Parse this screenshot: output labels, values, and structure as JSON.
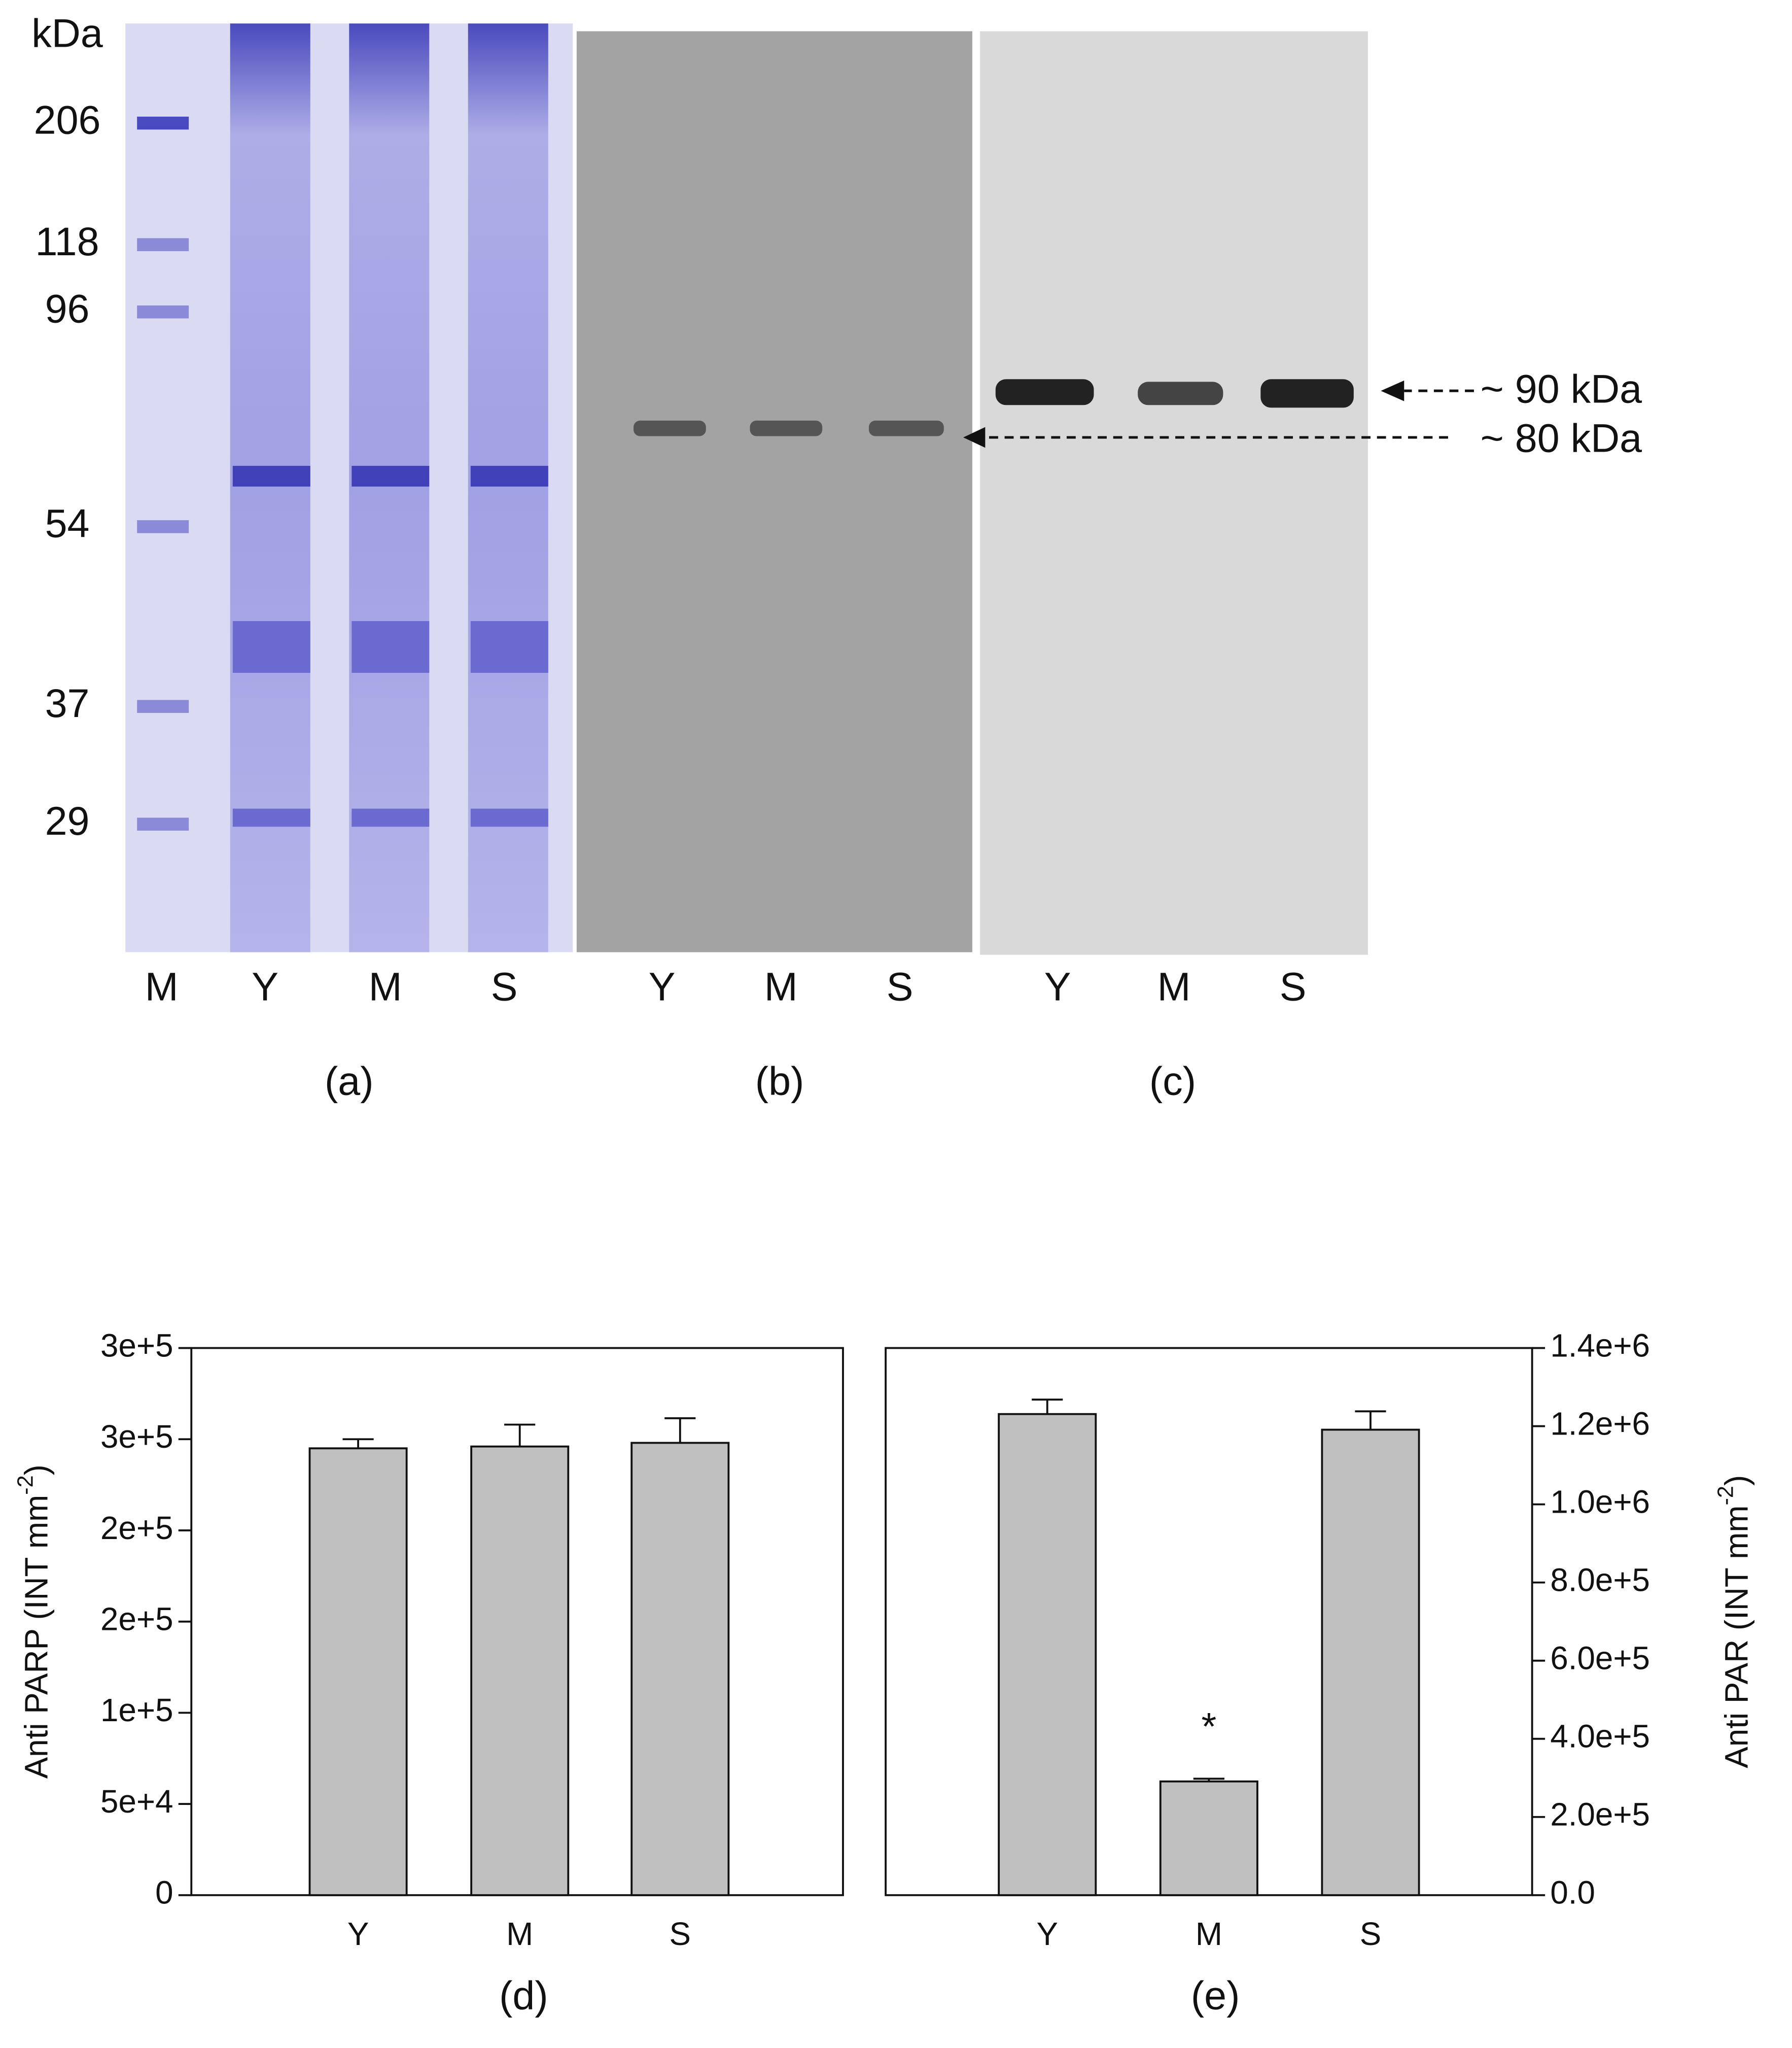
{
  "gels": {
    "kda_label": "kDa",
    "markers": [
      206,
      118,
      96,
      54,
      37,
      29
    ],
    "panels": [
      {
        "lanes": [
          "M",
          "Y",
          "M",
          "S"
        ],
        "caption": "(a)"
      },
      {
        "lanes": [
          "Y",
          "M",
          "S"
        ],
        "caption": "(b)"
      },
      {
        "lanes": [
          "Y",
          "M",
          "S"
        ],
        "caption": "(c)"
      }
    ],
    "bands": [
      "~ 90 kDa",
      "~ 80 kDa"
    ]
  },
  "chart_data": [
    {
      "type": "bar",
      "caption": "(d)",
      "ylabel": {
        "text": "Anti PARP (INT mm",
        "sup": "-2",
        "end": ")"
      },
      "categories": [
        "Y",
        "M",
        "S"
      ],
      "values": [
        245000,
        246000,
        248000
      ],
      "errors": [
        5000,
        12000,
        13500
      ],
      "color": "#c0c0c0",
      "ylim": [
        0,
        300000
      ],
      "yticks": [
        0,
        {
          "value": 50000,
          "label": "5e+4"
        },
        {
          "value": 100000,
          "label": "1e+5"
        },
        {
          "value": 150000,
          "label": "2e+5"
        },
        {
          "value": 200000,
          "label": "2e+5"
        },
        {
          "value": 250000,
          "label": "3e+5"
        },
        {
          "value": 300000,
          "label": "3e+5"
        }
      ]
    },
    {
      "type": "bar",
      "caption": "(e)",
      "ylabel": {
        "text": "Anti PAR (INT mm",
        "sup": "-2",
        "end": ")"
      },
      "categories": [
        "Y",
        "M",
        "S"
      ],
      "values": [
        1231000,
        291000,
        1191000
      ],
      "errors": [
        37000,
        7000,
        47000
      ],
      "color": "#c0c0c0",
      "annotations": [
        {
          "text": "*",
          "x": "M"
        }
      ],
      "y2lim": [
        0,
        1400000
      ],
      "y2ticks": [
        {
          "value": 0,
          "label": "0.0"
        },
        {
          "value": 200000,
          "label": "2.0e+5"
        },
        {
          "value": 400000,
          "label": "4.0e+5"
        },
        {
          "value": 600000,
          "label": "6.0e+5"
        },
        {
          "value": 800000,
          "label": "8.0e+5"
        },
        {
          "value": 1000000,
          "label": "1.0e+6"
        },
        {
          "value": 1200000,
          "label": "1.2e+6"
        },
        {
          "value": 1400000,
          "label": "1.4e+6"
        }
      ]
    }
  ]
}
